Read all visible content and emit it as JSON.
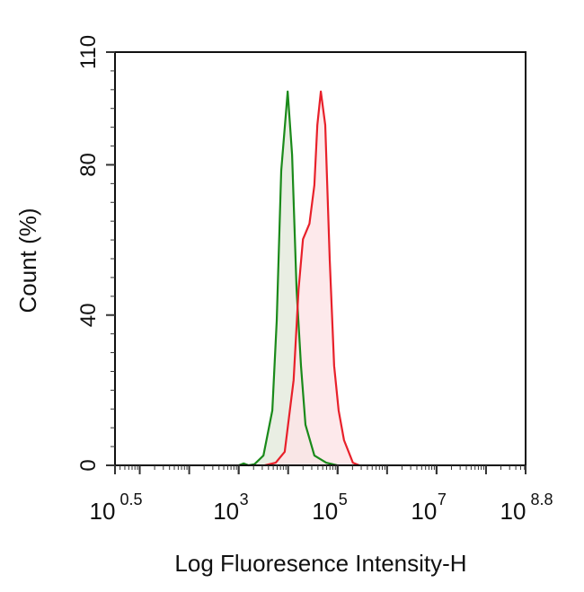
{
  "chart_data": {
    "type": "area",
    "xlabel": "Log Fluoresence Intensity-H",
    "ylabel": "Count  (%)",
    "x_scale": "log10",
    "xlim_log10": [
      0.5,
      8.8
    ],
    "ylim": [
      0,
      110
    ],
    "x_ticks": [
      {
        "base": "10",
        "exp": "0.5",
        "value": 0.5
      },
      {
        "base": "10",
        "exp": "3",
        "value": 3
      },
      {
        "base": "10",
        "exp": "5",
        "value": 5
      },
      {
        "base": "10",
        "exp": "7",
        "value": 7
      },
      {
        "base": "10",
        "exp": "8.8",
        "value": 8.8
      }
    ],
    "y_ticks": [
      0,
      40,
      80,
      110
    ],
    "grid": false,
    "series": [
      {
        "color": "#1a8a1a",
        "fill": "#e4eadc",
        "points_log10x": [
          [
            3.0,
            0
          ],
          [
            3.1,
            0.5
          ],
          [
            3.2,
            0
          ],
          [
            3.32,
            0.3
          ],
          [
            3.5,
            2.6
          ],
          [
            3.68,
            14.6
          ],
          [
            3.77,
            38.5
          ],
          [
            3.86,
            78.4
          ],
          [
            3.99,
            99.5
          ],
          [
            4.08,
            82.7
          ],
          [
            4.17,
            46.8
          ],
          [
            4.26,
            26.5
          ],
          [
            4.35,
            10.8
          ],
          [
            4.53,
            2.6
          ],
          [
            4.77,
            0.7
          ],
          [
            4.99,
            0
          ]
        ]
      },
      {
        "color": "#e8202a",
        "fill": "#fde3e6",
        "points_log10x": [
          [
            3.53,
            0
          ],
          [
            3.75,
            0.7
          ],
          [
            3.93,
            3.6
          ],
          [
            4.11,
            22.7
          ],
          [
            4.21,
            46.8
          ],
          [
            4.3,
            60.2
          ],
          [
            4.43,
            64.3
          ],
          [
            4.53,
            74.6
          ],
          [
            4.59,
            90.6
          ],
          [
            4.66,
            99.5
          ],
          [
            4.75,
            90.6
          ],
          [
            4.84,
            54.7
          ],
          [
            4.93,
            26.5
          ],
          [
            5.02,
            14.6
          ],
          [
            5.13,
            6.7
          ],
          [
            5.31,
            0.7
          ],
          [
            5.44,
            0
          ]
        ]
      }
    ]
  }
}
